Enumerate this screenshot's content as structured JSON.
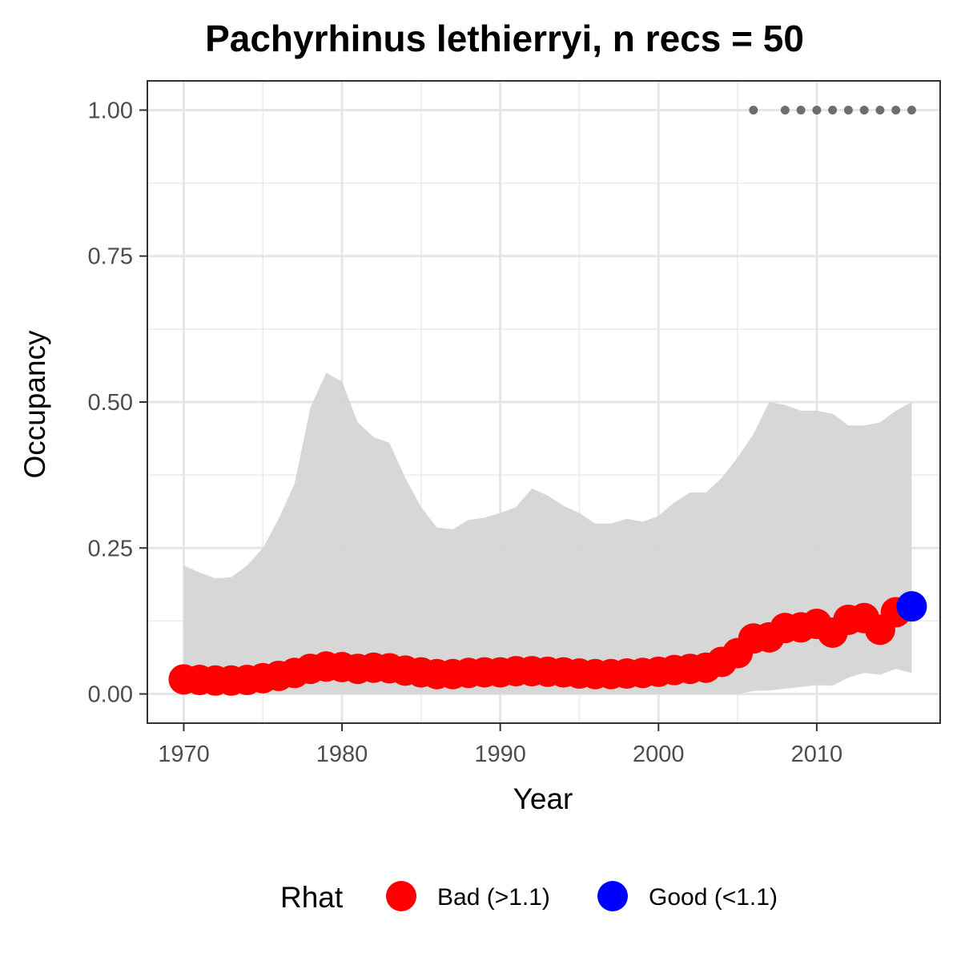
{
  "chart_data": {
    "type": "line",
    "title": "Pachyrhinus lethierryi, n recs = 50",
    "xlabel": "Year",
    "ylabel": "Occupancy",
    "xlim": [
      1967.7,
      2017.8
    ],
    "ylim": [
      -0.05,
      1.05
    ],
    "x_ticks": [
      "1970",
      "1980",
      "1990",
      "2000",
      "2010"
    ],
    "x_tick_values": [
      1970,
      1980,
      1990,
      2000,
      2010
    ],
    "y_ticks": [
      "0.00",
      "0.25",
      "0.50",
      "0.75",
      "1.00"
    ],
    "y_tick_values": [
      0,
      0.25,
      0.5,
      0.75,
      1
    ],
    "grid": true,
    "legend_position": "bottom",
    "legend": {
      "title": "Rhat",
      "entries": [
        {
          "label": "Bad (>1.1)",
          "color": "#ff0000"
        },
        {
          "label": "Good (<1.1)",
          "color": "#0000ff"
        }
      ]
    },
    "colors": {
      "bad": "#ff0000",
      "good": "#0000ff",
      "ribbon": "#d3d3d3",
      "record_points": "#6e6e6e"
    },
    "years": [
      1970,
      1971,
      1972,
      1973,
      1974,
      1975,
      1976,
      1977,
      1978,
      1979,
      1980,
      1981,
      1982,
      1983,
      1984,
      1985,
      1986,
      1987,
      1988,
      1989,
      1990,
      1991,
      1992,
      1993,
      1994,
      1995,
      1996,
      1997,
      1998,
      1999,
      2000,
      2001,
      2002,
      2003,
      2004,
      2005,
      2006,
      2007,
      2008,
      2009,
      2010,
      2011,
      2012,
      2013,
      2014,
      2015,
      2016
    ],
    "mean": [
      0.025,
      0.024,
      0.023,
      0.023,
      0.024,
      0.027,
      0.031,
      0.036,
      0.043,
      0.047,
      0.046,
      0.043,
      0.045,
      0.044,
      0.04,
      0.037,
      0.034,
      0.034,
      0.036,
      0.037,
      0.037,
      0.039,
      0.039,
      0.038,
      0.037,
      0.035,
      0.034,
      0.034,
      0.035,
      0.036,
      0.038,
      0.041,
      0.043,
      0.045,
      0.055,
      0.07,
      0.095,
      0.097,
      0.113,
      0.114,
      0.12,
      0.105,
      0.127,
      0.13,
      0.11,
      0.14,
      0.15
    ],
    "upper": [
      0.22,
      0.208,
      0.198,
      0.2,
      0.22,
      0.25,
      0.3,
      0.36,
      0.49,
      0.55,
      0.535,
      0.465,
      0.44,
      0.43,
      0.37,
      0.32,
      0.285,
      0.282,
      0.298,
      0.302,
      0.31,
      0.32,
      0.352,
      0.34,
      0.322,
      0.31,
      0.292,
      0.292,
      0.3,
      0.295,
      0.305,
      0.328,
      0.345,
      0.345,
      0.37,
      0.405,
      0.445,
      0.5,
      0.495,
      0.485,
      0.485,
      0.48,
      0.46,
      0.46,
      0.465,
      0.485,
      0.5
    ],
    "lower": [
      0,
      0,
      0,
      0,
      0,
      0,
      0,
      0,
      0,
      0,
      0,
      0,
      0,
      0,
      0,
      0,
      0,
      0,
      0,
      0,
      0,
      0,
      0,
      0,
      0,
      0,
      0,
      0,
      0,
      0,
      0,
      0,
      0,
      0,
      0,
      0,
      0.005,
      0.006,
      0.009,
      0.012,
      0.015,
      0.014,
      0.028,
      0.036,
      0.033,
      0.043,
      0.036
    ],
    "rhat_status": [
      "Bad",
      "Bad",
      "Bad",
      "Bad",
      "Bad",
      "Bad",
      "Bad",
      "Bad",
      "Bad",
      "Bad",
      "Bad",
      "Bad",
      "Bad",
      "Bad",
      "Bad",
      "Bad",
      "Bad",
      "Bad",
      "Bad",
      "Bad",
      "Bad",
      "Bad",
      "Bad",
      "Bad",
      "Bad",
      "Bad",
      "Bad",
      "Bad",
      "Bad",
      "Bad",
      "Bad",
      "Bad",
      "Bad",
      "Bad",
      "Bad",
      "Bad",
      "Bad",
      "Bad",
      "Bad",
      "Bad",
      "Bad",
      "Bad",
      "Bad",
      "Bad",
      "Bad",
      "Bad",
      "Good"
    ],
    "record_years": [
      2006,
      2008,
      2009,
      2010,
      2011,
      2012,
      2013,
      2014,
      2015,
      2016
    ],
    "record_y": 1.0
  }
}
